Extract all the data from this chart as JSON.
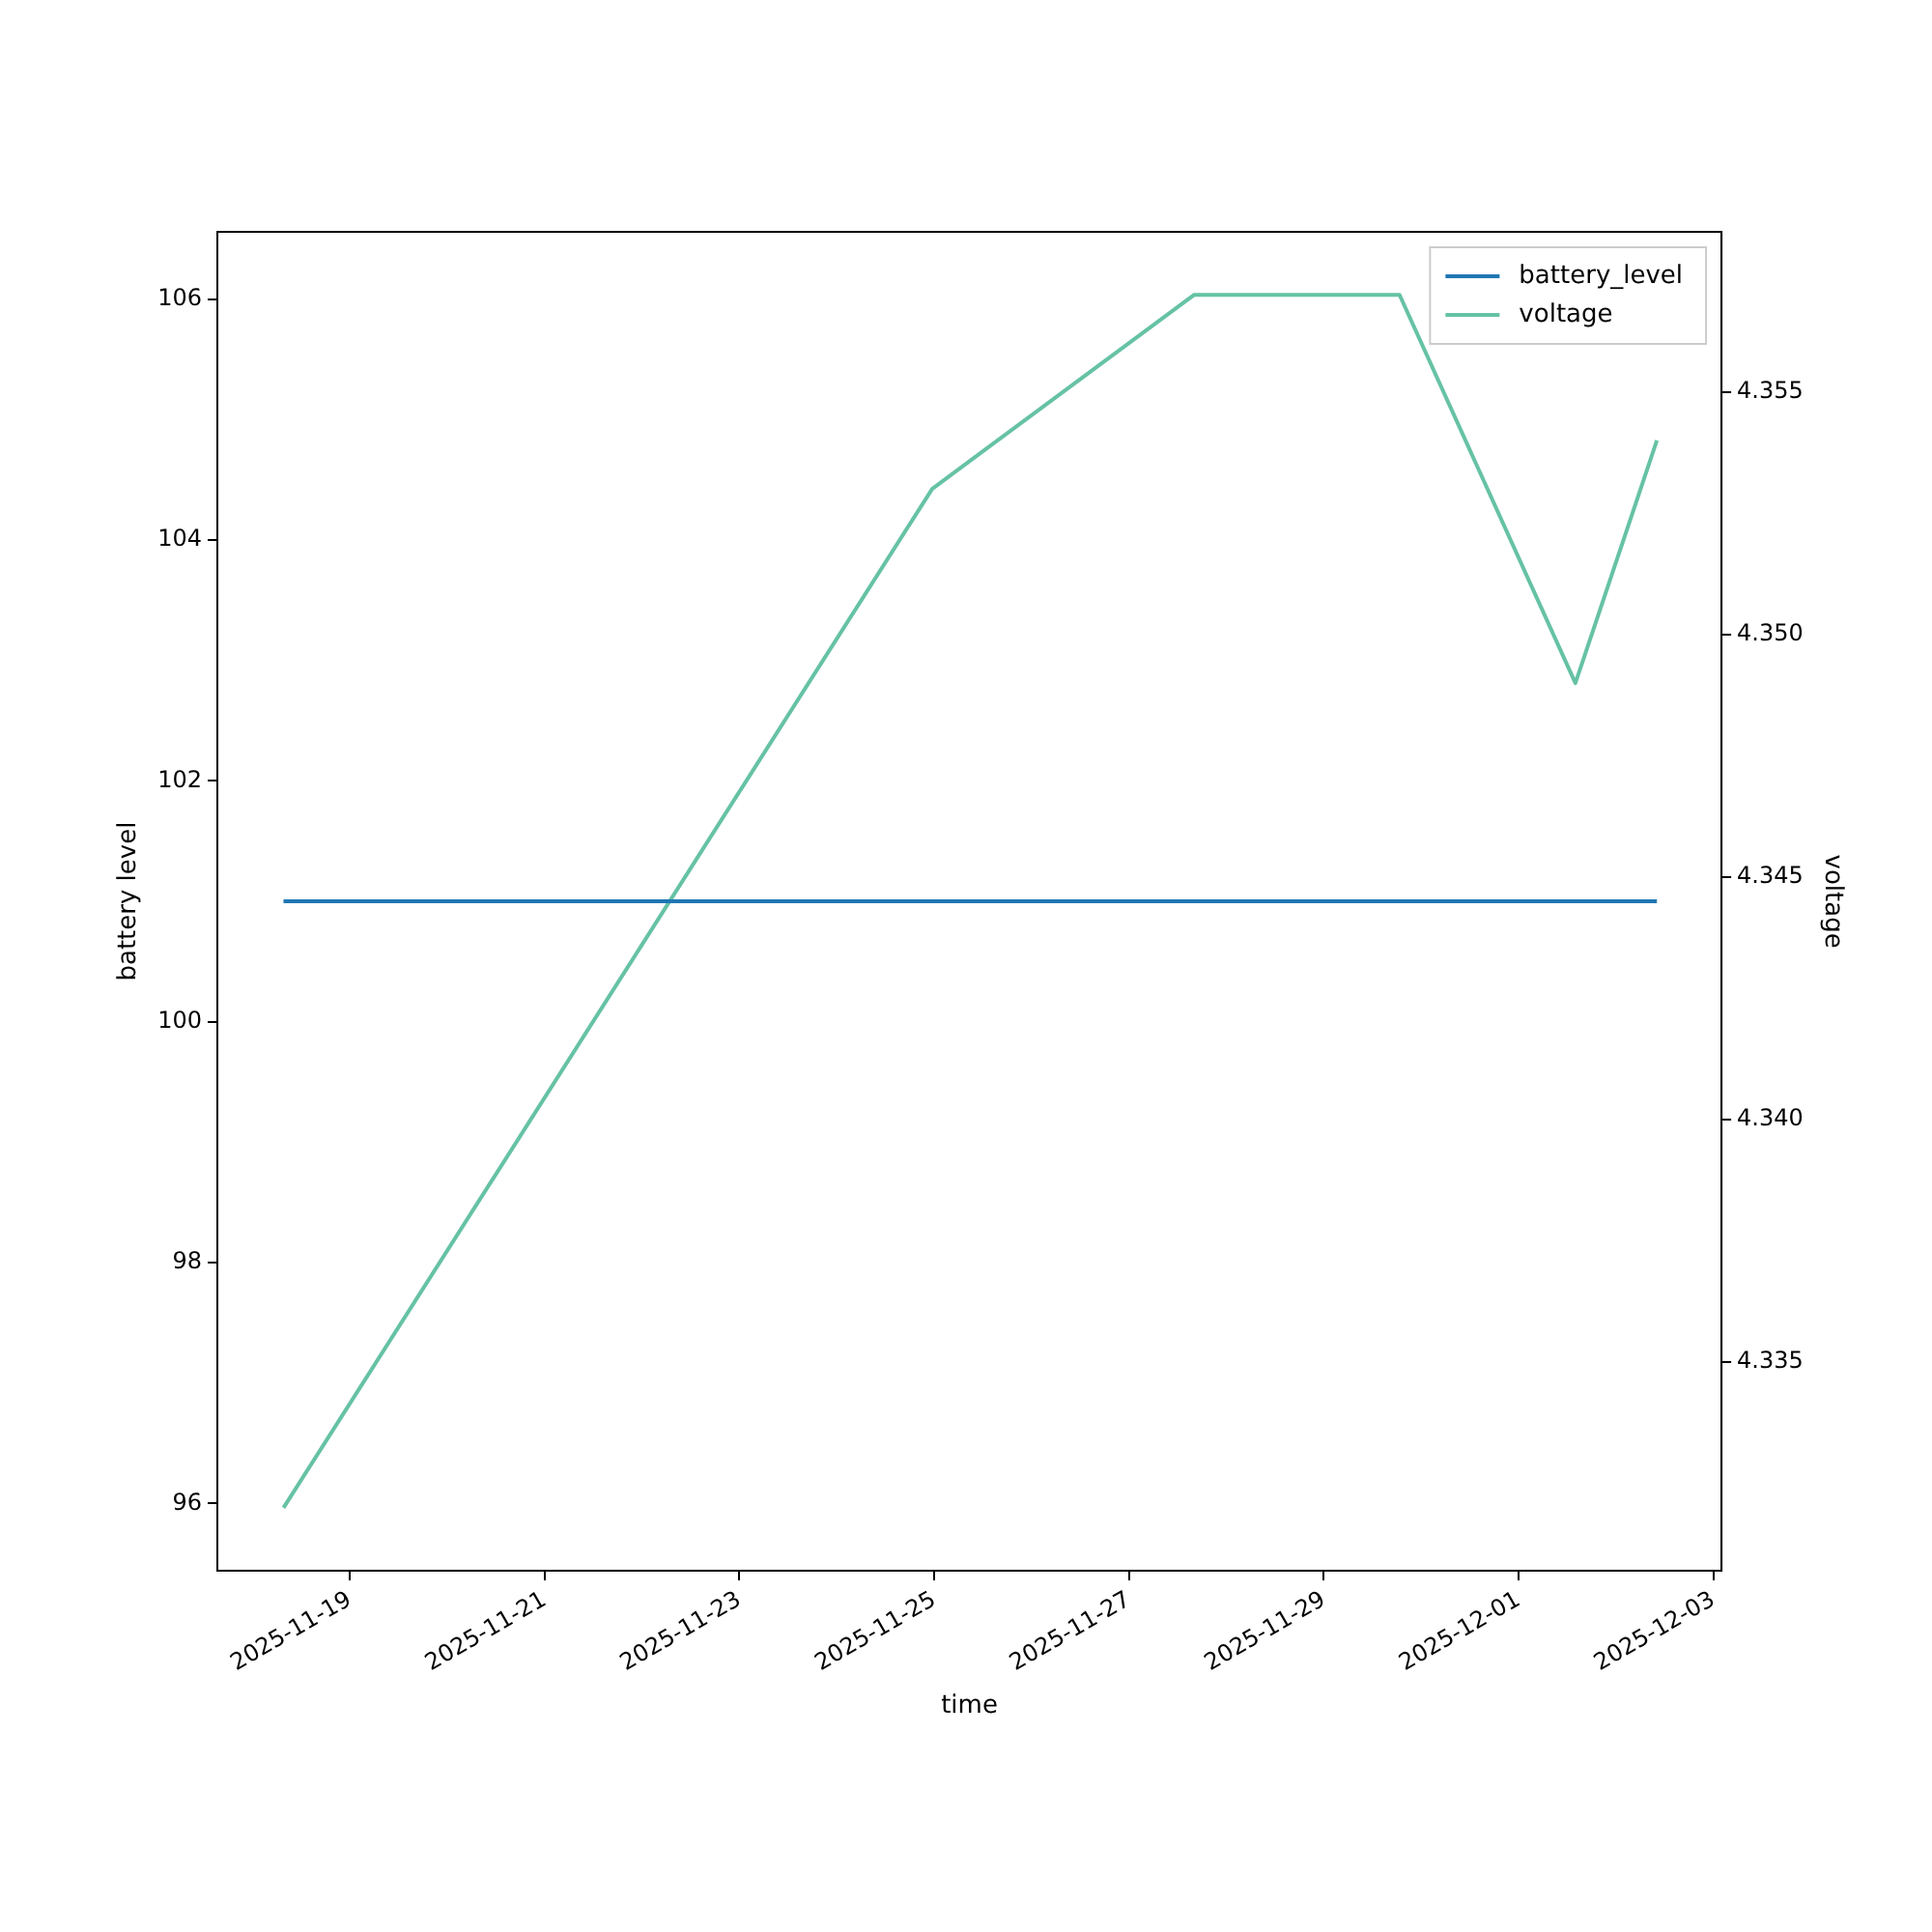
{
  "chart_data": {
    "type": "line",
    "xlabel": "time",
    "ylabel": "battery level",
    "y2label": "voltage",
    "x": [
      "2025-11-18T07:40",
      "2025-11-24T23:30",
      "2025-11-27T16:00",
      "2025-11-29T18:40",
      "2025-12-01T14:00",
      "2025-12-02T10:05"
    ],
    "series": [
      {
        "name": "battery_level",
        "color": "#1f77b4",
        "values": [
          101,
          101,
          101,
          101,
          101,
          101
        ]
      },
      {
        "name": "voltage",
        "color": "#66c2a5",
        "axis": "y2",
        "values": [
          4.332,
          4.353,
          4.357,
          4.357,
          4.349,
          4.354
        ]
      }
    ],
    "xlim": [
      "2025-11-17T15:22",
      "2025-12-03T02:00"
    ],
    "xticks": [
      "2025-11-19",
      "2025-11-21",
      "2025-11-23",
      "2025-11-25",
      "2025-11-27",
      "2025-11-29",
      "2025-12-01",
      "2025-12-03"
    ],
    "ylim": [
      95.44,
      106.56
    ],
    "yticks": [
      96,
      98,
      100,
      102,
      104,
      106
    ],
    "y2lim": [
      4.3307,
      4.3583
    ],
    "y2ticks": [
      4.335,
      {
        "value": 4.34,
        "label": "4.340"
      },
      4.345,
      {
        "value": 4.35,
        "label": "4.350"
      },
      4.355
    ],
    "grid": false,
    "legend": "top right",
    "line_style": "solid",
    "marker": "none"
  }
}
